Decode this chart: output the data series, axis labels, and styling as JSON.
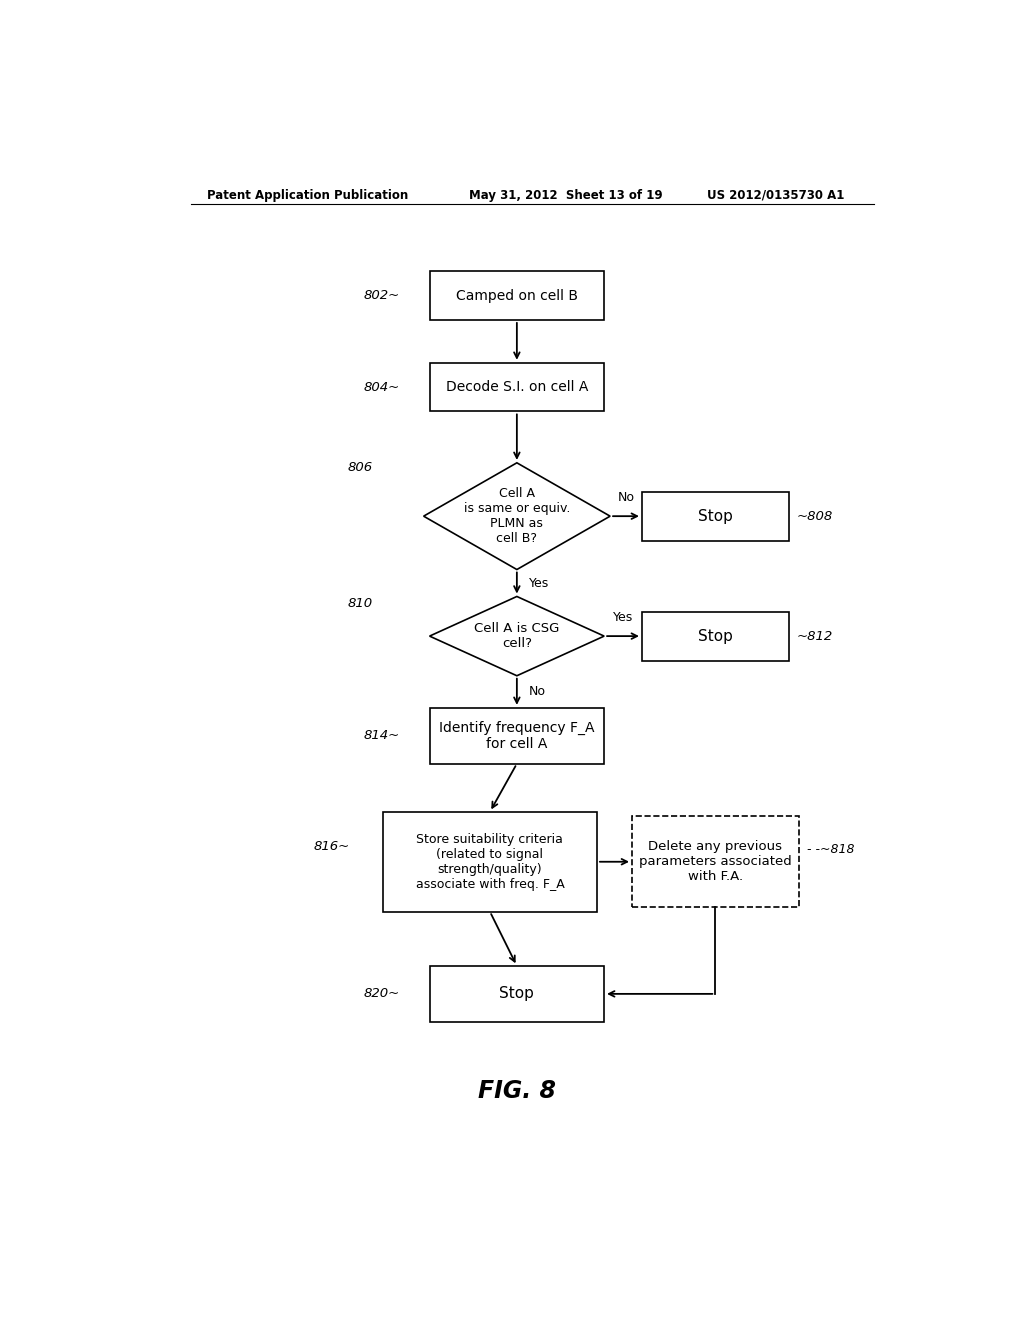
{
  "bg_color": "#ffffff",
  "header_left": "Patent Application Publication",
  "header_mid": "May 31, 2012  Sheet 13 of 19",
  "header_right": "US 2012/0135730 A1",
  "fig_label": "FIG. 8"
}
